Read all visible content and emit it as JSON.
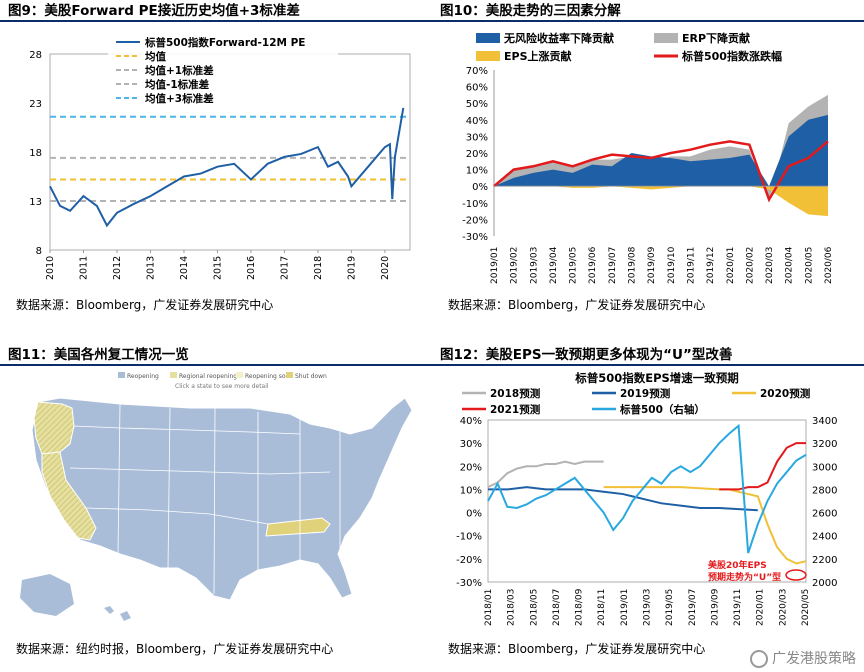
{
  "panels": {
    "fig9": {
      "title": "图9：美股Forward PE接近历史均值+3标准差",
      "source": "数据来源：Bloomberg，广发证券发展研究中心"
    },
    "fig10": {
      "title": "图10：美股走势的三因素分解",
      "source": "数据来源：Bloomberg，广发证券发展研究中心"
    },
    "fig11": {
      "title": "图11：美国各州复工情况一览",
      "source": "数据来源：纽约时报，Bloomberg，广发证券发展研究中心"
    },
    "fig12": {
      "title": "图12：美股EPS一致预期更多体现为“U”型改善",
      "source": "数据来源：Bloomberg，广发证券发展研究中心"
    }
  },
  "watermark": "广发港股策略",
  "map": {
    "legend": [
      "Reopening",
      "Regional reopening",
      "Reopening soon",
      "Shut down"
    ],
    "note": "Click a state to see more detail",
    "colors": {
      "open": "#a9bdd8",
      "regional": "#e6e0a0",
      "soon": "#f4f0c8",
      "shut": "#e0d27a"
    }
  },
  "chart_data": [
    {
      "type": "line",
      "id": "fig9",
      "ylim": [
        8,
        28
      ],
      "yticks": [
        8,
        13,
        18,
        23,
        28
      ],
      "xticks": [
        "2010",
        "2011",
        "2012",
        "2013",
        "2014",
        "2015",
        "2016",
        "2017",
        "2018",
        "2019",
        "2020"
      ],
      "series": [
        {
          "name": "标普500指数Forward-12M PE",
          "color": "#1f5fa5",
          "x": [
            2010.0,
            2010.3,
            2010.6,
            2011.0,
            2011.4,
            2011.7,
            2012.0,
            2012.5,
            2013.0,
            2013.5,
            2014.0,
            2014.5,
            2015.0,
            2015.5,
            2016.0,
            2016.5,
            2017.0,
            2017.5,
            2018.0,
            2018.3,
            2018.6,
            2018.9,
            2019.0,
            2019.5,
            2020.0,
            2020.15,
            2020.22,
            2020.3,
            2020.45,
            2020.55
          ],
          "y": [
            14.5,
            12.5,
            12.0,
            13.5,
            12.5,
            10.5,
            11.8,
            12.7,
            13.5,
            14.5,
            15.5,
            15.8,
            16.5,
            16.8,
            15.2,
            16.8,
            17.5,
            17.8,
            18.5,
            16.5,
            17.0,
            15.5,
            14.5,
            16.5,
            18.5,
            18.8,
            13.2,
            17.5,
            20.5,
            22.5
          ]
        },
        {
          "name": "均值",
          "color": "#f2c037",
          "dash": true,
          "value": 15.2
        },
        {
          "name": "均值+1标准差",
          "color": "#b3b3b3",
          "dash": true,
          "value": 17.4
        },
        {
          "name": "均值-1标准差",
          "color": "#b3b3b3",
          "dash": true,
          "value": 13.0
        },
        {
          "name": "均值+3标准差",
          "color": "#4fb4e6",
          "dash": true,
          "value": 21.6
        }
      ]
    },
    {
      "type": "area",
      "id": "fig10",
      "ylim": [
        -30,
        70
      ],
      "yticks": [
        -30,
        -20,
        -10,
        0,
        10,
        20,
        30,
        40,
        50,
        60,
        70
      ],
      "yticklabels": [
        "-30%",
        "-20%",
        "-10%",
        "0%",
        "10%",
        "20%",
        "30%",
        "40%",
        "50%",
        "60%",
        "70%"
      ],
      "categories": [
        "2019/01",
        "2019/02",
        "2019/03",
        "2019/04",
        "2019/05",
        "2019/06",
        "2019/07",
        "2019/08",
        "2019/09",
        "2019/10",
        "2019/11",
        "2019/12",
        "2020/01",
        "2020/02",
        "2020/03",
        "2020/04",
        "2020/05",
        "2020/06"
      ],
      "x": [
        0,
        1,
        2,
        3,
        4,
        5,
        6,
        7,
        8,
        9,
        10,
        11,
        12,
        13,
        14,
        15,
        16,
        17
      ],
      "series": [
        {
          "name": "无风险收益率下降贡献",
          "color": "#1f5fa5",
          "values": [
            0,
            5,
            8,
            10,
            8,
            13,
            12,
            20,
            18,
            17,
            15,
            16,
            17,
            19,
            0,
            30,
            40,
            43
          ]
        },
        {
          "name": "ERP下降贡献",
          "color": "#b3b3b3",
          "values": [
            0,
            10,
            12,
            15,
            12,
            16,
            16,
            18,
            14,
            18,
            18,
            22,
            24,
            22,
            -10,
            38,
            48,
            55
          ]
        },
        {
          "name": "EPS上涨贡献",
          "color": "#f2c037",
          "values": [
            0,
            0,
            0,
            0,
            -1,
            -1,
            0,
            -1,
            -2,
            -1,
            0,
            0,
            0,
            0,
            -2,
            -10,
            -17,
            -18
          ]
        },
        {
          "name": "标普500指数涨跌幅",
          "color": "#e31a1c",
          "values": [
            0,
            10,
            12,
            15,
            12,
            16,
            19,
            18,
            17,
            20,
            22,
            25,
            27,
            25,
            -8,
            12,
            17,
            27
          ]
        }
      ]
    },
    {
      "type": "line",
      "id": "fig12",
      "title": "标普500指数EPS增速一致预期",
      "ylim": [
        -30,
        40
      ],
      "yticks": [
        -30,
        -20,
        -10,
        0,
        10,
        20,
        30,
        40
      ],
      "yticklabels": [
        "-30%",
        "-20%",
        "-10%",
        "0%",
        "10%",
        "20%",
        "30%",
        "40%"
      ],
      "y2lim": [
        2000,
        3400
      ],
      "y2ticks": [
        2000,
        2200,
        2400,
        2600,
        2800,
        3000,
        3200,
        3400
      ],
      "xticks": [
        "2018/01",
        "2018/03",
        "2018/05",
        "2018/07",
        "2018/09",
        "2018/11",
        "2019/01",
        "2019/03",
        "2019/05",
        "2019/07",
        "2019/09",
        "2019/11",
        "2020/01",
        "2020/03",
        "2020/05"
      ],
      "annotation": "美股20年EPS预期走势为“U”型",
      "series": [
        {
          "name": "2018预测",
          "color": "#b3b3b3",
          "axis": "left",
          "x": [
            0,
            1,
            2,
            3,
            4,
            5,
            6,
            7,
            8,
            9,
            10,
            11,
            12
          ],
          "y": [
            11,
            13,
            17,
            19,
            20,
            20,
            21,
            21,
            22,
            21,
            22,
            22,
            22
          ]
        },
        {
          "name": "2019预测",
          "color": "#1f5fa5",
          "axis": "left",
          "x": [
            0,
            2,
            4,
            6,
            8,
            10,
            12,
            14,
            16,
            18,
            20,
            22,
            24,
            26,
            28
          ],
          "y": [
            10,
            10,
            11,
            10,
            10,
            10,
            9,
            8,
            6,
            4,
            3,
            2,
            2,
            1.5,
            1
          ]
        },
        {
          "name": "2020预测",
          "color": "#f2c037",
          "axis": "left",
          "x": [
            12,
            16,
            20,
            24,
            25,
            26,
            27,
            28,
            29,
            30,
            31,
            32,
            33
          ],
          "y": [
            11,
            11,
            11,
            10,
            10,
            9,
            8,
            7,
            -5,
            -15,
            -20,
            -22,
            -21
          ]
        },
        {
          "name": "2021预测",
          "color": "#e31a1c",
          "axis": "left",
          "x": [
            24,
            26,
            27,
            28,
            29,
            30,
            31,
            32,
            33
          ],
          "y": [
            10,
            10,
            11,
            11,
            13,
            22,
            28,
            30,
            30
          ]
        },
        {
          "name": "标普500（右轴）",
          "color": "#29a8e0",
          "axis": "right",
          "x": [
            0,
            1,
            2,
            3,
            4,
            5,
            6,
            7,
            8,
            9,
            10,
            11,
            12,
            13,
            14,
            15,
            16,
            17,
            18,
            19,
            20,
            21,
            22,
            23,
            24,
            25,
            26,
            27,
            28,
            29,
            30,
            31,
            32,
            33
          ],
          "y": [
            2700,
            2850,
            2650,
            2640,
            2670,
            2720,
            2750,
            2800,
            2850,
            2900,
            2800,
            2700,
            2600,
            2450,
            2550,
            2700,
            2800,
            2900,
            2850,
            2950,
            3000,
            2950,
            3000,
            3100,
            3200,
            3280,
            3350,
            2250,
            2500,
            2700,
            2850,
            2950,
            3050,
            3100
          ]
        }
      ]
    }
  ]
}
